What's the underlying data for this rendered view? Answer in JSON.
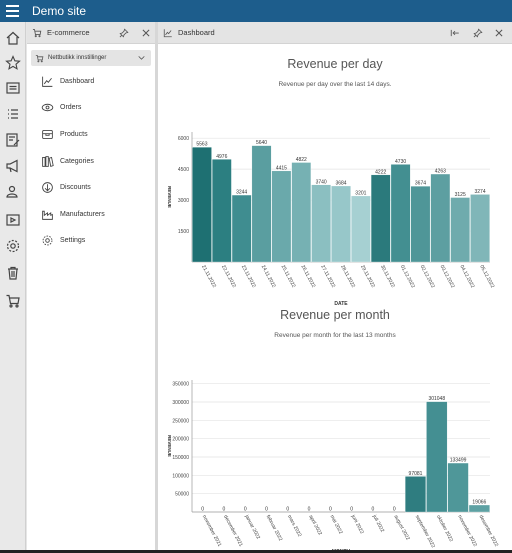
{
  "app": {
    "title": "Demo site"
  },
  "ecommerce_panel": {
    "title": "E-commerce",
    "dropdown": {
      "label": "Nettbutikk innstillinger"
    },
    "menu": [
      {
        "label": "Dashboard",
        "icon": "chart-line-icon"
      },
      {
        "label": "Orders",
        "icon": "orders-icon"
      },
      {
        "label": "Products",
        "icon": "products-icon"
      },
      {
        "label": "Categories",
        "icon": "categories-icon"
      },
      {
        "label": "Discounts",
        "icon": "discounts-icon"
      },
      {
        "label": "Manufacturers",
        "icon": "manufacturers-icon"
      },
      {
        "label": "Settings",
        "icon": "settings-icon"
      }
    ]
  },
  "dashboard_panel": {
    "title": "Dashboard"
  },
  "colors": {
    "topbar": "#1d5d8c",
    "teal_dark": "#1e7072"
  },
  "chart_data": [
    {
      "type": "bar",
      "title": "Revenue per day",
      "subtitle": "Revenue per day over the last 14 days.",
      "xlabel": "DATE",
      "ylabel": "REVENUE",
      "ylim": [
        0,
        6300
      ],
      "yticks": [
        1500,
        3000,
        4500,
        6000
      ],
      "grid": true,
      "categories": [
        "21.11.2022",
        "22.11.2022",
        "23.11.2022",
        "24.11.2022",
        "25.11.2022",
        "26.11.2022",
        "27.11.2022",
        "28.11.2022",
        "29.11.2022",
        "30.11.2022",
        "01.12.2022",
        "02.12.2022",
        "03.12.2022",
        "04.12.2022",
        "05.12.2022"
      ],
      "values": [
        5563,
        4976,
        3244,
        5640,
        4415,
        4822,
        3740,
        3684,
        3201,
        4222,
        4730,
        3674,
        4263,
        3125,
        3274
      ],
      "colors": [
        "#1e7072",
        "#2c7f81",
        "#3f8d90",
        "#5a9ea0",
        "#6aa9ab",
        "#76b1b3",
        "#8bbfc1",
        "#97c7c9",
        "#a6d0d2",
        "#2b7a7c",
        "#438f91",
        "#4f9698",
        "#5d9fa1",
        "#6fabad",
        "#80b6b8"
      ]
    },
    {
      "type": "bar",
      "title": "Revenue per month",
      "subtitle": "Revenue per month for the last 13 months",
      "xlabel": "MONTH",
      "ylabel": "REVENUE",
      "ylim": [
        0,
        360000
      ],
      "yticks": [
        50000,
        100000,
        150000,
        200000,
        250000,
        300000,
        350000
      ],
      "grid": true,
      "categories": [
        "november 2021",
        "december 2021",
        "januar 2022",
        "februar 2022",
        "mars 2022",
        "april 2022",
        "mai 2022",
        "juni 2022",
        "juli 2022",
        "august 2022",
        "september 2022",
        "oktober 2022",
        "november 2022",
        "desember 2022"
      ],
      "values": [
        0,
        0,
        0,
        0,
        0,
        0,
        0,
        0,
        0,
        0,
        97081,
        301048,
        133499,
        19066
      ],
      "colors": [
        "#3e8a8d",
        "#3e8a8d",
        "#3e8a8d",
        "#3e8a8d",
        "#3e8a8d",
        "#3e8a8d",
        "#3e8a8d",
        "#3e8a8d",
        "#3e8a8d",
        "#3e8a8d",
        "#2f7d80",
        "#448f92",
        "#4f9799",
        "#5ea1a3"
      ]
    }
  ]
}
